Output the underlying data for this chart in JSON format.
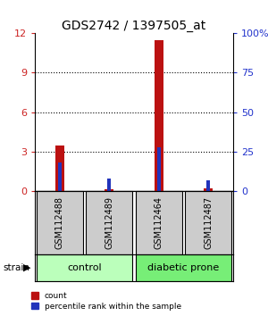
{
  "title": "GDS2742 / 1397505_at",
  "samples": [
    "GSM112488",
    "GSM112489",
    "GSM112464",
    "GSM112487"
  ],
  "count_values": [
    3.5,
    0.12,
    11.5,
    0.22
  ],
  "percentile_values": [
    18.0,
    8.0,
    27.5,
    7.0
  ],
  "ylim_left": [
    0,
    12
  ],
  "ylim_right": [
    0,
    100
  ],
  "yticks_left": [
    0,
    3,
    6,
    9,
    12
  ],
  "yticks_right": [
    0,
    25,
    50,
    75,
    100
  ],
  "count_color": "#bb1111",
  "percentile_color": "#2233bb",
  "control_color": "#bbffbb",
  "diabetic_color": "#77ee77",
  "label_color_left": "#cc2222",
  "label_color_right": "#2233cc",
  "bg_color": "#ffffff",
  "sample_box_color": "#cccccc",
  "count_bar_width": 0.18,
  "pct_bar_width": 0.08
}
